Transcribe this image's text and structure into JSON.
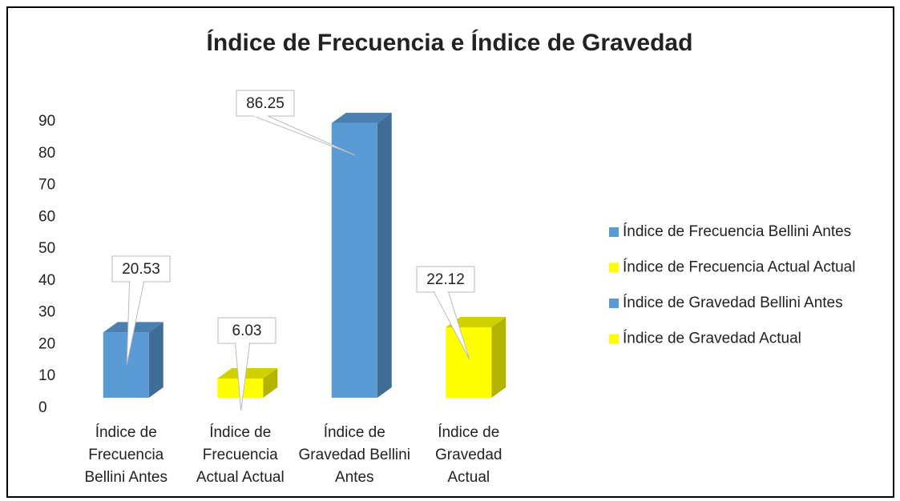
{
  "chart_data": {
    "type": "bar3d",
    "title": "Índice de Frecuencia e Índice de Gravedad",
    "categories": [
      "Índice de Frecuencia Bellini Antes",
      "Índice de Frecuencia Actual Actual",
      "Índice de Gravedad Bellini Antes",
      "Índice de Gravedad Actual"
    ],
    "series": [
      {
        "name": "Índice de Frecuencia Bellini Antes",
        "color": "#5b9bd5",
        "values": [
          20.53,
          null,
          null,
          null
        ]
      },
      {
        "name": "Índice de Frecuencia Actual Actual",
        "color": "#ffff00",
        "values": [
          null,
          6.03,
          null,
          null
        ]
      },
      {
        "name": "Índice de Gravedad Bellini Antes",
        "color": "#5b9bd5",
        "values": [
          null,
          null,
          86.25,
          null
        ]
      },
      {
        "name": "Índice de Gravedad Actual",
        "color": "#ffff00",
        "values": [
          null,
          null,
          null,
          22.12
        ]
      }
    ],
    "ylim": [
      0,
      90
    ],
    "yticks": [
      0,
      10,
      20,
      30,
      40,
      50,
      60,
      70,
      80,
      90
    ],
    "legend": "right"
  }
}
